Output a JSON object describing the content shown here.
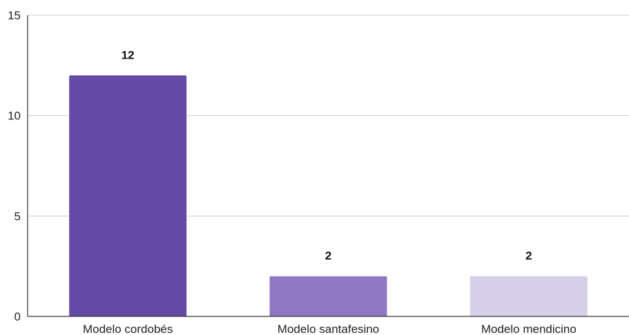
{
  "chart_data": {
    "type": "bar",
    "categories": [
      "Modelo cordobés",
      "Modelo santafesino",
      "Modelo mendicino"
    ],
    "values": [
      12,
      2,
      2
    ],
    "data_labels": [
      "12",
      "2",
      "2"
    ],
    "colors": [
      "#654ba5",
      "#8e78c3",
      "#d6d1e8"
    ],
    "ylim": [
      0,
      15
    ],
    "yticks": [
      0,
      5,
      10,
      15
    ],
    "grid": true,
    "title": "",
    "xlabel": "",
    "ylabel": ""
  }
}
